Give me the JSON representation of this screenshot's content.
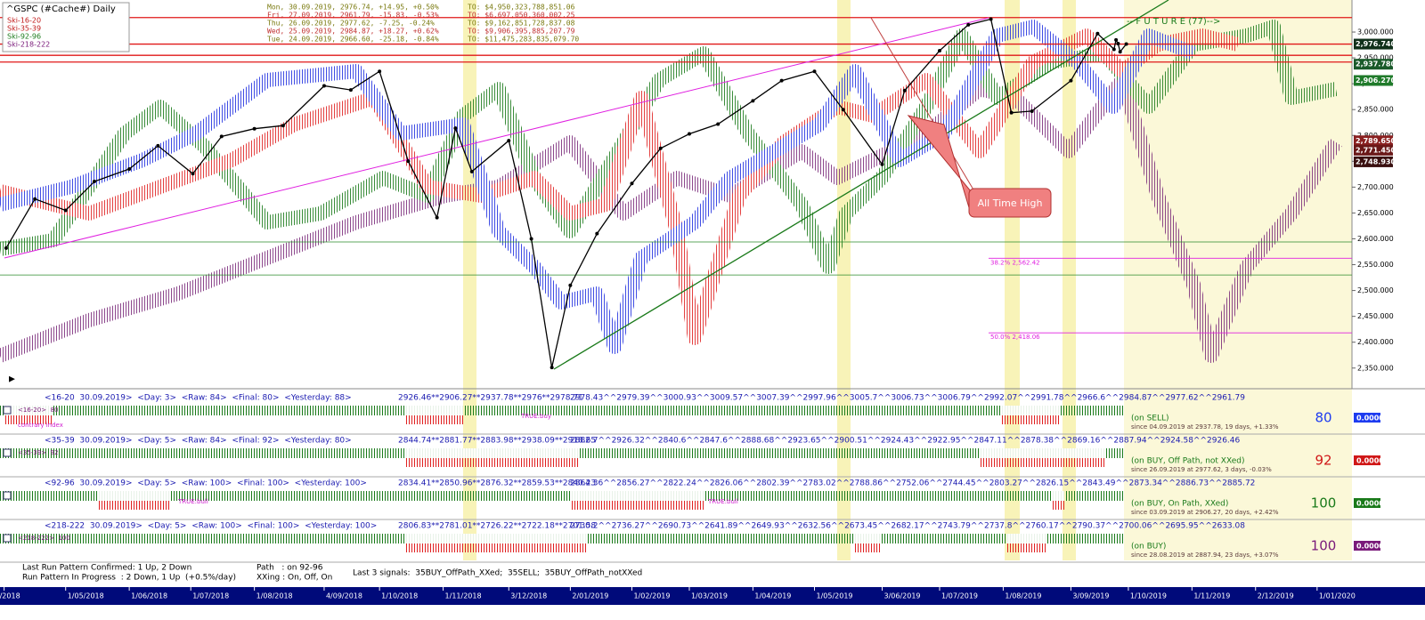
{
  "chart_data": {
    "type": "line",
    "title": "^GSPC (#Cache#) Daily",
    "color": "#000000",
    "legend": [
      {
        "name": "Ski-16-20",
        "color": "#c01818"
      },
      {
        "name": "Ski-35-39",
        "color": "#c01818"
      },
      {
        "name": "Ski-92-96",
        "color": "#1a7a1a"
      },
      {
        "name": "Ski-218-222",
        "color": "#7a1a7a"
      }
    ],
    "x": [
      "2/04/2018",
      "16/04/2018",
      "1/05/2018",
      "15/05/2018",
      "1/06/2018",
      "15/06/2018",
      "2/07/2018",
      "16/07/2018",
      "1/08/2018",
      "15/08/2018",
      "4/09/2018",
      "17/09/2018",
      "1/10/2018",
      "15/10/2018",
      "29/10/2018",
      "7/11/2018",
      "15/11/2018",
      "3/12/2018",
      "14/12/2018",
      "24/12/2018",
      "2/01/2019",
      "15/01/2019",
      "1/02/2019",
      "15/02/2019",
      "1/03/2019",
      "15/03/2019",
      "1/04/2019",
      "15/04/2019",
      "1/05/2019",
      "15/05/2019",
      "3/06/2019",
      "14/06/2019",
      "1/07/2019",
      "15/07/2019",
      "26/07/2019",
      "5/08/2019",
      "15/08/2019",
      "3/09/2019",
      "16/09/2019",
      "24/09/2019",
      "25/09/2019",
      "26/09/2019",
      "27/09/2019",
      "30/09/2019"
    ],
    "values": [
      2582,
      2677,
      2655,
      2711,
      2735,
      2780,
      2726,
      2798,
      2813,
      2819,
      2896,
      2888,
      2924,
      2750,
      2641,
      2814,
      2730,
      2790,
      2600,
      2351,
      2510,
      2610,
      2707,
      2775,
      2803,
      2822,
      2867,
      2906,
      2924,
      2850,
      2744,
      2887,
      2964,
      3014,
      3025,
      2844,
      2847,
      2906,
      2997,
      2966.6,
      2984.87,
      2977.62,
      2961.79,
      2976.74
    ],
    "xlim": [
      "30/03/2018",
      "18/01/2020"
    ],
    "xticks": [
      {
        "value": "1/04/2018",
        "label": "/2018"
      },
      "1/05/2018",
      "1/06/2018",
      "1/07/2018",
      "1/08/2018",
      "4/09/2018",
      "1/10/2018",
      "1/11/2018",
      "3/12/2018",
      "2/01/2019",
      "1/02/2019",
      "1/03/2019",
      "1/04/2019",
      "1/05/2019",
      "3/06/2019",
      "1/07/2019",
      "1/08/2019",
      "3/09/2019",
      "1/10/2019",
      "1/11/2019",
      "2/12/2019",
      "1/01/2020"
    ],
    "ylim": [
      2310,
      3062
    ],
    "yticks": [
      {
        "value": 2350,
        "label": "2,350.000"
      },
      {
        "value": 2400,
        "label": "2,400.000"
      },
      {
        "value": 2450,
        "label": "2,450.000"
      },
      {
        "value": 2500,
        "label": "2,500.000"
      },
      {
        "value": 2550,
        "label": "2,550.000"
      },
      {
        "value": 2600,
        "label": "2,600.000"
      },
      {
        "value": 2650,
        "label": "2,650.000"
      },
      {
        "value": 2700,
        "label": "2,700.000"
      },
      {
        "value": 2750,
        "label": "2,750.000"
      },
      {
        "value": 2800,
        "label": "2,800.000"
      },
      {
        "value": 2850,
        "label": "2,850.000"
      },
      {
        "value": 2900,
        "label": "2,900.000"
      },
      {
        "value": 2950,
        "label": "2,950.000"
      },
      {
        "value": 3000,
        "label": "3,000.000"
      }
    ],
    "red_lines": [
      3028,
      2976.74,
      2955,
      2942
    ],
    "green_lines": [
      2594,
      2530
    ],
    "fib_lines": [
      {
        "value": 2562.42,
        "label": "38.2% 2,562.42"
      },
      {
        "value": 2418.06,
        "label": "50.0% 2,418.06"
      }
    ],
    "price_labels": [
      {
        "value": 2976.74,
        "label": "2,976.740",
        "color": "#10301a"
      },
      {
        "value": 2937.78,
        "label": "2,937.780",
        "color": "#1a5a2a"
      },
      {
        "value": 2906.27,
        "label": "2,906.270",
        "color": "#1f7a2a"
      },
      {
        "value": 2789.65,
        "label": "2,789.650",
        "color": "#8a2020"
      },
      {
        "value": 2771.45,
        "label": "2,771.450",
        "color": "#6a1818"
      },
      {
        "value": 2748.93,
        "label": "2,748.930",
        "color": "#3a1010"
      }
    ],
    "annotations": [
      "All Time High",
      "-- F U T U R E (77)-->"
    ]
  },
  "quotes": [
    [
      "Mon, 30.09.2019, 2976.74, +14.95, +0.50%",
      "TO: $4,950,323,788,851.06"
    ],
    [
      "Fri, 27.09.2019, 2961.79, -15.83, -0.53%",
      "TO: $6,697,050,360,002.25"
    ],
    [
      "Thu, 26.09.2019, 2977.62, -7.25, -0.24%",
      "TO: $9,162,851,728,837.08"
    ],
    [
      "Wed, 25.09.2019, 2984.87, +18.27, +0.62%",
      "TO: $9,906,395,885,207.79"
    ],
    [
      "Tue, 24.09.2019, 2966.60, -25.18, -0.84%",
      "TO: $11,475,283,835,079.70"
    ]
  ],
  "panels": [
    {
      "header": "<16-20  30.09.2019>  <Day: 3>  <Raw: 84>  <Final: 80>  <Yesterday: 88>",
      "left_numbers": "2926.46**2906.27**2937.78**2976**2978.71",
      "right_numbers": "2978.43^^2979.39^^3000.93^^3009.57^^3007.39^^2997.96^^3005.7^^3006.73^^3006.79^^2992.07^^2991.78^^2966.6^^2984.87^^2977.62^^2961.79",
      "tag": "<16-20>  80",
      "notes": [
        "contrary index",
        "TRUE:buy"
      ],
      "status": "(on SELL)",
      "since": "since 04.09.2019 at 2937.78, 19 days, +1.33%",
      "final": "80",
      "box": "0.0000",
      "color": "#1e3cf0"
    },
    {
      "header": "<35-39  30.09.2019>  <Day: 5>  <Raw: 84>  <Final: 92>  <Yesterday: 80>",
      "left_numbers": "2844.74**2881.77**2883.98**2938.09**2918.65",
      "right_numbers": "2882.7^^2926.32^^2840.6^^2847.6^^2888.68^^2923.65^^2900.51^^2924.43^^2922.95^^2847.11^^2878.38^^2869.16^^2887.94^^2924.58^^2926.46",
      "tag": "<35-39>  92",
      "notes": [],
      "status": "(on BUY, Off Path, not XXed)",
      "since": "since 26.09.2019 at 2977.62, 3 days, -0.03%",
      "final": "92",
      "box": "0.0000",
      "color": "#d01818"
    },
    {
      "header": "<92-96  30.09.2019>  <Day: 5>  <Raw: 100>  <Final: 100>  <Yesterday: 100>",
      "left_numbers": "2834.41**2850.96**2876.32**2859.53**2840.23",
      "right_numbers": "2864.36^^2856.27^^2822.24^^2826.06^^2802.39^^2783.02^^2788.86^^2752.06^^2744.45^^2803.27^^2826.15^^2843.49^^2873.34^^2886.73^^2885.72",
      "tag": "",
      "notes": [
        "TRUE:bull",
        "TRUE:bull"
      ],
      "status": "(on BUY, On Path, XXed)",
      "since": "since 03.09.2019 at 2906.27, 20 days, +2.42%",
      "final": "100",
      "box": "0.0000",
      "color": "#1a7a1a"
    },
    {
      "header": "<218-222  30.09.2019>  <Day: 5>  <Raw: 100>  <Final: 100>  <Yesterday: 100>",
      "left_numbers": "2806.83**2781.01**2726.22**2722.18**2701.58",
      "right_numbers": "2730.2^^2736.27^^2690.73^^2641.89^^2649.93^^2632.56^^2673.45^^2682.17^^2743.79^^2737.8^^2760.17^^2790.37^^2700.06^^2695.95^^2633.08",
      "tag": "<218-222>  100",
      "notes": [],
      "status": "(on BUY)",
      "since": "since 28.08.2019 at 2887.94, 23 days, +3.07%",
      "final": "100",
      "box": "0.0000",
      "color": "#7a1a7a"
    }
  ],
  "footer": {
    "confirmed": "Last Run Pattern Confirmed: 1 Up, 2 Down",
    "progress": "Run Pattern In Progress  : 2 Down, 1 Up  (+0.5%/day)",
    "path": "Path   : on 92-96",
    "xxing": "XXing : On, Off, On",
    "signals": "Last 3 signals:  35BUY_OffPath_XXed;  35SELL;  35BUY_OffPath_notXXed"
  }
}
